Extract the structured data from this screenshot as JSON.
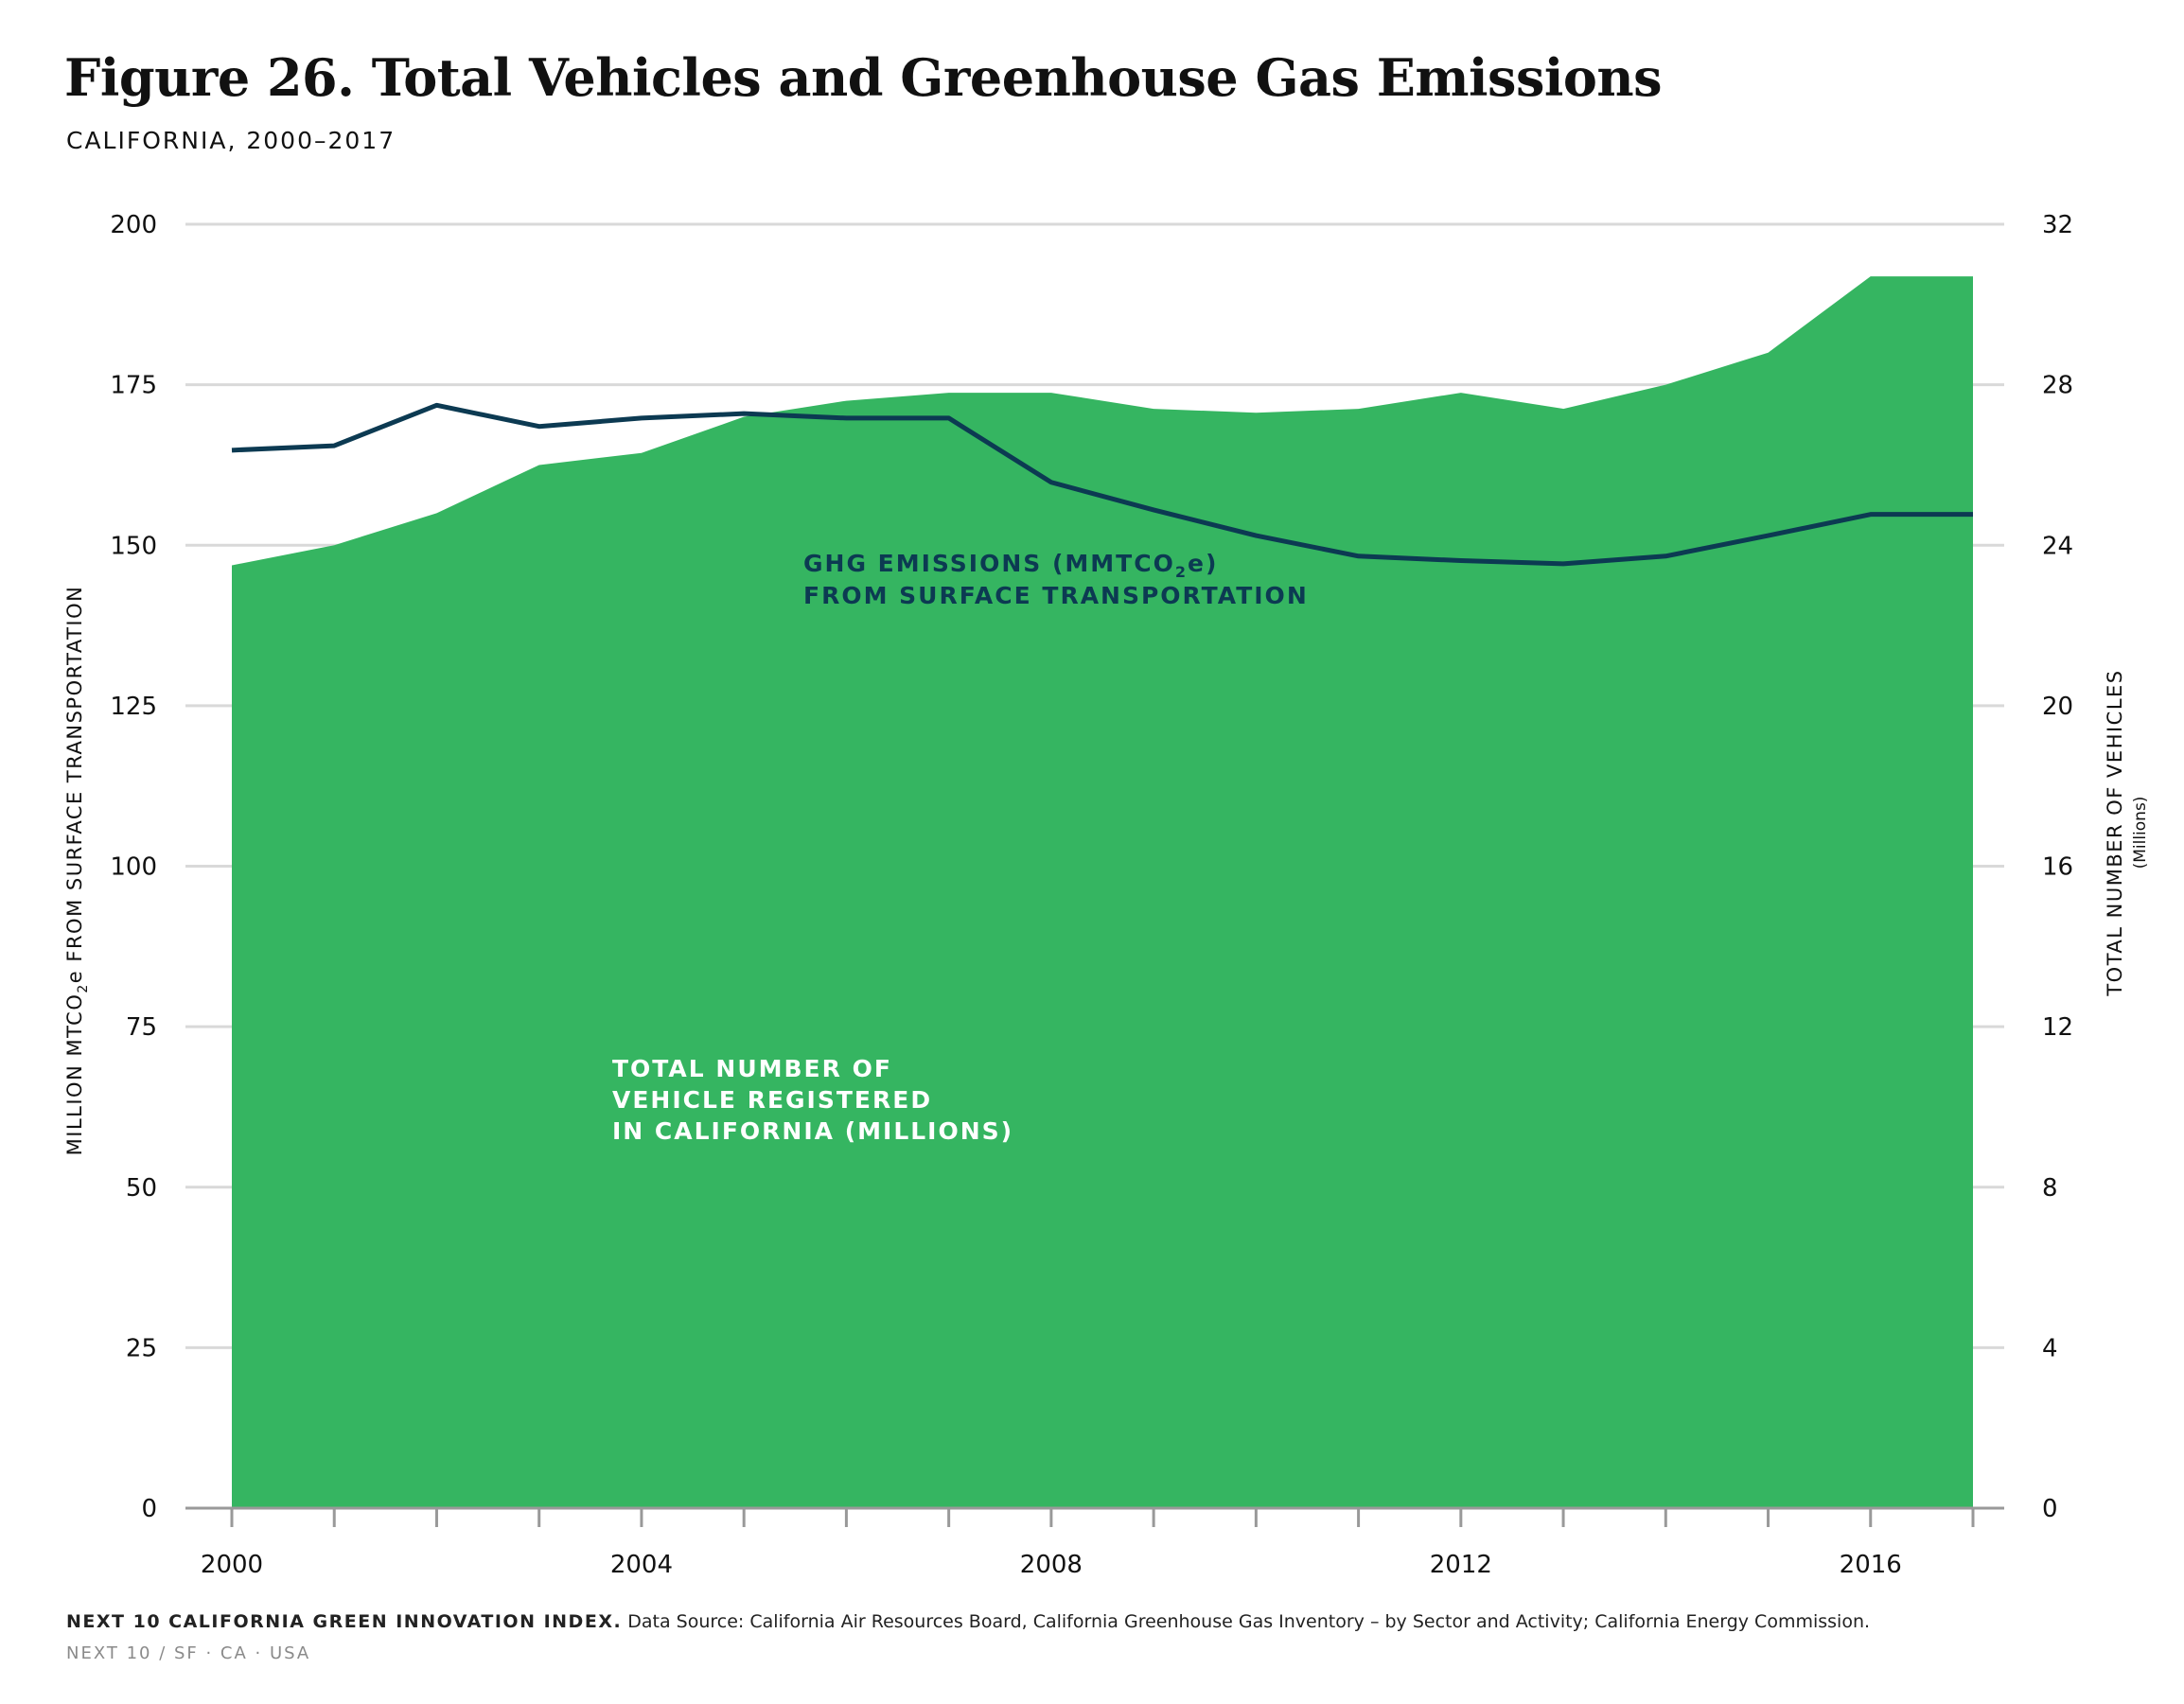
{
  "header": {
    "title": "Figure 26. Total Vehicles and Greenhouse Gas Emissions",
    "subtitle": "CALIFORNIA, 2000–2017"
  },
  "footer": {
    "brand": "NEXT 10 CALIFORNIA GREEN INNOVATION INDEX.",
    "source": "Data Source: California Air Resources Board, California Greenhouse Gas Inventory – by Sector and Activity; California Energy Commission.",
    "org": "NEXT 10  /  SF · CA · USA"
  },
  "colors": {
    "area": "#35b561",
    "line": "#0c3a52",
    "grid": "#d9d9d9",
    "axis": "#999999"
  },
  "chart_data": {
    "type": "area",
    "x": [
      2000,
      2001,
      2002,
      2003,
      2004,
      2005,
      2006,
      2007,
      2008,
      2009,
      2010,
      2011,
      2012,
      2013,
      2014,
      2015,
      2016,
      2017
    ],
    "x_ticks": [
      "2000",
      "2004",
      "2008",
      "2012",
      "2016"
    ],
    "x_tick_values": [
      2000,
      2004,
      2008,
      2012,
      2016
    ],
    "left_axis": {
      "label_main": "MILLION MTCO",
      "label_sub": "2",
      "label_rest": "e  FROM SURFACE  TRANSPORTATION",
      "ticks": [
        "0",
        "25",
        "50",
        "75",
        "100",
        "125",
        "150",
        "175",
        "200"
      ],
      "tick_values": [
        0,
        25,
        50,
        75,
        100,
        125,
        150,
        175,
        200
      ],
      "range": [
        0,
        200
      ]
    },
    "right_axis": {
      "label": "TOTAL  NUMBER  OF  VEHICLES",
      "sublabel": "(Millions)",
      "ticks": [
        "0",
        "4",
        "8",
        "12",
        "16",
        "20",
        "24",
        "28",
        "32"
      ],
      "tick_values": [
        0,
        4,
        8,
        12,
        16,
        20,
        24,
        28,
        32
      ],
      "range": [
        0,
        32
      ]
    },
    "series": [
      {
        "name": "Total number of vehicle registered in California (millions)",
        "axis": "right",
        "kind": "area",
        "annotation_lines": [
          "TOTAL NUMBER OF",
          "VEHICLE REGISTERED",
          "IN CALIFORNIA (MILLIONS)"
        ],
        "values": [
          23.5,
          24.0,
          24.8,
          26.0,
          26.3,
          27.2,
          27.6,
          27.8,
          27.8,
          27.4,
          27.3,
          27.4,
          27.8,
          27.4,
          28.0,
          28.8,
          30.7,
          null
        ]
      },
      {
        "name": "GHG emissions (MMTCO2e) from surface transportation",
        "axis": "left",
        "kind": "line",
        "annotation_lines": [
          "GHG EMISSIONS (MMTCO",
          "2",
          "e)",
          "FROM SURFACE TRANSPORTATION"
        ],
        "values": [
          164.8,
          165.5,
          171.8,
          168.5,
          169.8,
          170.5,
          169.8,
          169.8,
          159.8,
          155.5,
          151.5,
          148.3,
          147.6,
          147.1,
          148.3,
          151.5,
          154.8,
          null
        ]
      }
    ]
  }
}
